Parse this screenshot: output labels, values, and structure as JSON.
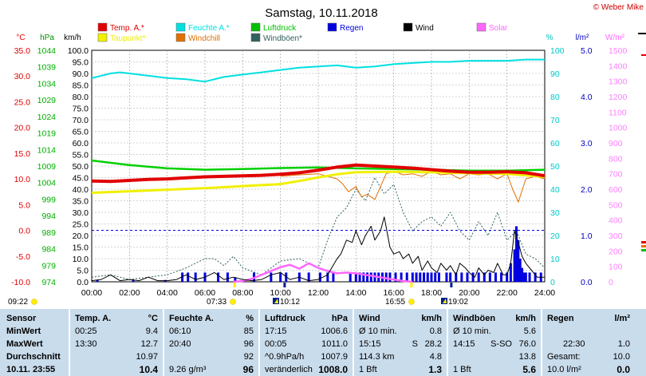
{
  "header": {
    "title": "Samstag, 10.11.2018",
    "brand": "© Weber Mike"
  },
  "colors": {
    "temp": "#e00000",
    "humidity": "#00e0e0",
    "pressure": "#00c000",
    "rain": "#0000e0",
    "wind": "#000000",
    "solar": "#ff66ff",
    "dewpoint": "#f0f000",
    "windchill": "#e07000",
    "gusts": "#306060"
  },
  "legend": [
    {
      "label": "Temp. A.*",
      "color": "#e00000"
    },
    {
      "label": "Feuchte A.*",
      "color": "#00e0e0"
    },
    {
      "label": "Luftdruck",
      "color": "#00c000"
    },
    {
      "label": "Regen",
      "color": "#0000e0"
    },
    {
      "label": "Wind",
      "color": "#000000"
    },
    {
      "label": "Solar",
      "color": "#ff66ff"
    },
    {
      "label": "Taupunkt*",
      "color": "#f0f000"
    },
    {
      "label": "Windchill",
      "color": "#e07000"
    },
    {
      "label": "Windböen*",
      "color": "#306060"
    }
  ],
  "chart_data": {
    "type": "line",
    "x_unit": "time of day",
    "x_ticks": [
      "00:00",
      "02:00",
      "04:00",
      "06:00",
      "08:00",
      "10:00",
      "12:00",
      "14:00",
      "16:00",
      "18:00",
      "20:00",
      "22:00",
      "24:00"
    ],
    "axes": {
      "temp": {
        "unit": "°C",
        "ticks": [
          "35.0",
          "30.0",
          "25.0",
          "20.0",
          "15.0",
          "10.0",
          "5.0",
          "0.0",
          "-5.0",
          "-10.0"
        ],
        "range": [
          -10,
          35
        ]
      },
      "pressure": {
        "unit": "hPa",
        "ticks": [
          "1044",
          "1039",
          "1034",
          "1029",
          "1024",
          "1019",
          "1014",
          "1009",
          "1004",
          "999",
          "994",
          "989",
          "984",
          "979",
          "974"
        ],
        "range": [
          974,
          1044
        ]
      },
      "wind": {
        "unit": "km/h",
        "ticks": [
          "100.0",
          "95.0",
          "90.0",
          "85.0",
          "80.0",
          "75.0",
          "70.0",
          "65.0",
          "60.0",
          "55.0",
          "50.0",
          "45.0",
          "40.0",
          "35.0",
          "30.0",
          "25.0",
          "20.0",
          "15.0",
          "10.0",
          "5.0",
          "0.0"
        ],
        "range": [
          0,
          100
        ]
      },
      "humidity": {
        "unit": "%",
        "ticks": [
          "100",
          "90",
          "80",
          "70",
          "60",
          "50",
          "40",
          "30",
          "20",
          "10",
          "0"
        ],
        "range": [
          0,
          100
        ]
      },
      "rain": {
        "unit": "l/m²",
        "ticks": [
          "5.0",
          "4.0",
          "3.0",
          "2.0",
          "1.0",
          "0.0"
        ],
        "range": [
          0,
          5
        ]
      },
      "solar": {
        "unit": "W/m²",
        "ticks": [
          "1500",
          "1400",
          "1300",
          "1200",
          "1100",
          "1000",
          "900",
          "800",
          "700",
          "600",
          "500",
          "400",
          "300",
          "200",
          "100",
          "0"
        ],
        "range": [
          0,
          1500
        ]
      }
    },
    "series": [
      {
        "name": "Temp. A.*",
        "axis": "temp",
        "x": [
          0,
          1,
          2,
          3,
          4,
          5,
          6,
          7,
          8,
          9,
          10,
          11,
          12,
          13,
          14,
          15,
          16,
          17,
          18,
          19,
          20,
          21,
          22,
          23,
          24
        ],
        "values": [
          9.6,
          9.5,
          9.7,
          9.9,
          10.0,
          10.2,
          10.4,
          10.5,
          10.6,
          10.7,
          10.9,
          11.2,
          11.7,
          12.3,
          12.7,
          12.5,
          12.3,
          12.1,
          11.8,
          11.5,
          11.3,
          11.3,
          11.4,
          11.2,
          10.6
        ]
      },
      {
        "name": "Feuchte A.*",
        "axis": "humidity",
        "x": [
          0,
          1,
          1.5,
          2,
          3,
          4,
          5,
          6,
          7,
          8,
          9,
          10,
          11,
          12,
          13,
          14,
          15,
          16,
          17,
          18,
          19,
          20,
          21,
          22,
          23,
          24
        ],
        "values": [
          88,
          90,
          90.5,
          90,
          89,
          88,
          87.5,
          86.5,
          88.5,
          89.5,
          90.5,
          91.5,
          92.5,
          93,
          93.5,
          92.5,
          93,
          94,
          94.5,
          95,
          95,
          95.5,
          95.5,
          95.5,
          96,
          96
        ]
      },
      {
        "name": "Luftdruck",
        "axis": "pressure",
        "x": [
          0,
          2,
          4,
          6,
          8,
          10,
          12,
          14,
          16,
          18,
          20,
          22,
          24
        ],
        "values": [
          1010.7,
          1009.3,
          1008.3,
          1007.9,
          1008.1,
          1008.4,
          1008.6,
          1008.3,
          1008.1,
          1007.9,
          1007.6,
          1007.6,
          1007.9
        ]
      },
      {
        "name": "Taupunkt*",
        "axis": "temp",
        "x": [
          0,
          2,
          4,
          6,
          8,
          10,
          11,
          12,
          13,
          14,
          16,
          18,
          20,
          22,
          24
        ],
        "values": [
          7.3,
          7.6,
          7.9,
          8.2,
          8.6,
          9.0,
          9.6,
          10.3,
          10.9,
          11.3,
          11.4,
          11.3,
          11.1,
          11.0,
          10.4
        ]
      },
      {
        "name": "Windchill",
        "axis": "temp",
        "x": [
          10,
          11,
          12,
          12.5,
          13,
          13.3,
          13.6,
          14,
          14.3,
          14.6,
          15,
          15.3,
          15.6,
          16,
          16.5,
          17,
          17.5,
          18,
          18.5,
          19,
          19.5,
          20,
          20.5,
          21,
          21.5,
          22,
          22.3,
          22.6,
          23,
          23.5,
          24
        ],
        "values": [
          10.5,
          10.8,
          11.0,
          10.5,
          10.0,
          9.0,
          7.5,
          8.5,
          6.5,
          7.0,
          6.0,
          8.5,
          11.0,
          11.5,
          10.8,
          11.0,
          10.5,
          11.5,
          10.8,
          11.0,
          10.0,
          11.0,
          10.8,
          11.0,
          10.0,
          11.0,
          8.0,
          5.5,
          10.0,
          10.5,
          10.0
        ]
      },
      {
        "name": "Wind",
        "axis": "wind",
        "x": [
          0,
          0.5,
          1,
          1.5,
          2,
          2.5,
          3,
          3.5,
          4,
          4.5,
          5,
          5.5,
          6,
          6.5,
          7,
          7.5,
          8,
          8.5,
          9,
          9.5,
          10,
          10.5,
          11,
          11.5,
          12,
          12.5,
          13,
          13.2,
          13.5,
          13.8,
          14,
          14.3,
          14.5,
          14.8,
          15,
          15.3,
          15.5,
          15.8,
          16,
          16.3,
          16.5,
          16.8,
          17,
          17.3,
          17.5,
          17.8,
          18,
          18.3,
          18.5,
          18.8,
          19,
          19.3,
          19.5,
          19.8,
          20,
          20.3,
          20.5,
          20.8,
          21,
          21.3,
          21.5,
          21.8,
          22,
          22.2,
          22.4,
          22.6,
          22.8,
          23,
          23.3,
          23.6,
          24
        ],
        "values": [
          0.5,
          1,
          3,
          0.5,
          1,
          0.5,
          2,
          0.5,
          0.5,
          1,
          3,
          1,
          2,
          4,
          1,
          2,
          1,
          0.5,
          1,
          3,
          4,
          1,
          2,
          0.5,
          1,
          3,
          10,
          12,
          18,
          17,
          22,
          16,
          20,
          24,
          18,
          22,
          28,
          15,
          12,
          13,
          10,
          12,
          8,
          11,
          5,
          9,
          6,
          4,
          8,
          5,
          7,
          3,
          8,
          6,
          4,
          2,
          6,
          3,
          5,
          4,
          8,
          3,
          3,
          8,
          22,
          17,
          11,
          8,
          5,
          2,
          2
        ]
      },
      {
        "name": "Windböen*",
        "axis": "wind",
        "x": [
          0,
          1,
          2,
          3,
          4,
          5,
          6,
          6.5,
          7,
          7.5,
          8,
          9,
          10,
          11,
          12,
          12.5,
          13,
          13.5,
          14,
          14.5,
          15,
          15.5,
          16,
          16.5,
          17,
          17.5,
          18,
          18.5,
          19,
          19.5,
          20,
          20.5,
          21,
          21.5,
          22,
          22.5,
          23,
          23.5,
          24
        ],
        "values": [
          2,
          3,
          1,
          2,
          3,
          6,
          10,
          10,
          7,
          11,
          6,
          3,
          9,
          10,
          6,
          18,
          28,
          32,
          40,
          35,
          45,
          38,
          42,
          30,
          22,
          26,
          28,
          24,
          30,
          22,
          18,
          26,
          20,
          30,
          18,
          22,
          12,
          10,
          6
        ]
      },
      {
        "name": "Solar",
        "axis": "solar",
        "x": [
          7.5,
          8,
          8.5,
          9,
          9.5,
          10,
          10.5,
          11,
          11.5,
          12,
          12.5,
          13,
          13.5,
          14,
          14.5,
          15,
          15.5,
          16,
          16.5,
          17
        ],
        "values": [
          0,
          5,
          20,
          45,
          70,
          95,
          110,
          85,
          120,
          90,
          70,
          55,
          60,
          55,
          45,
          35,
          25,
          15,
          5,
          0
        ]
      },
      {
        "name": "Regen",
        "axis": "rain",
        "type": "bar",
        "x": [
          0.3,
          2.2,
          3.9,
          4.8,
          5.1,
          5.5,
          6.0,
          6.7,
          7.2,
          7.6,
          8.6,
          9.5,
          10.0,
          10.3,
          11.0,
          11.5,
          12.1,
          12.5,
          12.8,
          13.7,
          14.0,
          14.2,
          14.4,
          14.6,
          14.8,
          15.0,
          15.2,
          15.4,
          15.6,
          15.8,
          16.1,
          16.4,
          16.7,
          17.0,
          17.2,
          17.4,
          17.6,
          17.8,
          18.0,
          18.2,
          18.4,
          18.8,
          19.0,
          19.3,
          19.6,
          19.9,
          20.2,
          20.5,
          20.8,
          21.1,
          21.4,
          21.7,
          22.0,
          22.2,
          22.4,
          22.5,
          22.6,
          22.7,
          22.8,
          22.9,
          23.0,
          23.2,
          23.5,
          23.8
        ],
        "values": [
          0.04,
          0.04,
          0.04,
          0.2,
          0.2,
          0.2,
          0.2,
          0.2,
          0.2,
          0.1,
          0.2,
          0.2,
          0.2,
          0.2,
          0.2,
          0.2,
          0.2,
          0.2,
          0.2,
          0.2,
          0.2,
          0.2,
          0.2,
          0.2,
          0.2,
          0.2,
          0.2,
          0.2,
          0.2,
          0.2,
          0.2,
          0.2,
          0.2,
          0.2,
          0.2,
          0.2,
          0.2,
          0.2,
          0.2,
          0.2,
          0.2,
          0.2,
          0.2,
          0.2,
          0.2,
          0.2,
          0.2,
          0.2,
          0.2,
          0.2,
          0.2,
          0.2,
          0.2,
          0.4,
          0.7,
          1.2,
          0.9,
          0.5,
          0.3,
          0.2,
          0.2,
          0.2,
          0.2,
          0.2
        ]
      }
    ],
    "reference_lines": [
      {
        "axis": "temp",
        "value": 0,
        "style": "dashed",
        "color": "#0000e0"
      }
    ],
    "sun_events": [
      {
        "label": "09:22",
        "kind": "sun"
      },
      {
        "label": "07:33",
        "kind": "sun"
      },
      {
        "label": "10:12",
        "kind": "moon"
      },
      {
        "label": "16:55",
        "kind": "sun"
      },
      {
        "label": "19:02",
        "kind": "moon"
      }
    ],
    "grid": true
  },
  "stats": {
    "row_labels": [
      "Sensor",
      "MinWert",
      "MaxWert",
      "Durchschnitt",
      "10.11. 23:55"
    ],
    "temp": {
      "header": "Temp. A.",
      "unit": "°C",
      "min_time": "00:25",
      "min": "9.4",
      "max_time": "13:30",
      "max": "12.7",
      "avg": "10.97",
      "current": "10.4"
    },
    "humidity": {
      "header": "Feuchte A.",
      "unit": "%",
      "min_time": "06:10",
      "min": "85",
      "max_time": "20:40",
      "max": "96",
      "avg": "92",
      "abs": "9.26 g/m³",
      "current": "96"
    },
    "pressure": {
      "header": "Luftdruck",
      "unit": "hPa",
      "min_time": "17:15",
      "min": "1006.6",
      "max_time": "00:05",
      "max": "1011.0",
      "trend_label": "^0.9hPa/h",
      "avg": "1007.9",
      "forecast": "veränderlich",
      "current": "1008.0"
    },
    "wind": {
      "header": "Wind",
      "unit": "km/h",
      "avg_label": "Ø 10 min.",
      "avg10": "0.8",
      "max_time": "15:15",
      "max_dir": "S",
      "max": "28.2",
      "distance": "114.3 km",
      "avg": "4.8",
      "bft": "1 Bft",
      "current": "1.3"
    },
    "gusts": {
      "header": "Windböen",
      "unit": "km/h",
      "avg_label": "Ø 10 min.",
      "avg10": "5.6",
      "max_time": "14:15",
      "max_dir": "S-SO",
      "max": "76.0",
      "avg": "13.8",
      "bft": "1 Bft",
      "current": "5.6"
    },
    "rain": {
      "header": "Regen",
      "unit": "l/m²",
      "max_time": "22:30",
      "max": "1.0",
      "total_label": "Gesamt:",
      "total": "10.0",
      "last": "10.0 l/m²",
      "current": "0.0"
    }
  }
}
